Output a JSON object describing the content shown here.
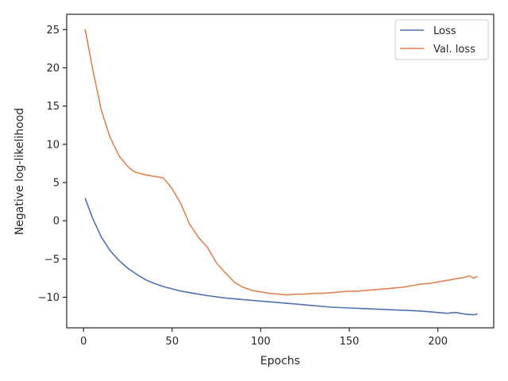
{
  "chart_data": {
    "type": "line",
    "title": "",
    "xlabel": "Epochs",
    "ylabel": "Negative log-likelihood",
    "xlim": [
      -9.5,
      231.5
    ],
    "ylim": [
      -14.0,
      27.0
    ],
    "xticks": [
      0,
      50,
      100,
      150,
      200
    ],
    "yticks": [
      -10,
      -5,
      0,
      5,
      10,
      15,
      20,
      25
    ],
    "grid": false,
    "legend_position": "top-right",
    "series": [
      {
        "name": "Loss",
        "color": "#4c72b0",
        "x": [
          1,
          5,
          10,
          15,
          20,
          25,
          30,
          35,
          40,
          45,
          50,
          55,
          60,
          70,
          80,
          90,
          100,
          110,
          120,
          130,
          140,
          150,
          160,
          170,
          180,
          190,
          200,
          205,
          210,
          215,
          220,
          222
        ],
        "y": [
          2.9,
          0.4,
          -2.1,
          -3.9,
          -5.2,
          -6.2,
          -7.0,
          -7.7,
          -8.2,
          -8.6,
          -8.9,
          -9.2,
          -9.4,
          -9.8,
          -10.1,
          -10.3,
          -10.5,
          -10.7,
          -10.9,
          -11.1,
          -11.3,
          -11.4,
          -11.5,
          -11.6,
          -11.7,
          -11.8,
          -12.0,
          -12.1,
          -12.0,
          -12.2,
          -12.3,
          -12.2
        ]
      },
      {
        "name": "Val. loss",
        "color": "#dd8452",
        "x": [
          1,
          5,
          10,
          15,
          20,
          25,
          28,
          30,
          35,
          40,
          45,
          48,
          50,
          55,
          60,
          65,
          70,
          75,
          80,
          85,
          90,
          95,
          100,
          105,
          110,
          115,
          120,
          125,
          130,
          135,
          140,
          145,
          150,
          155,
          160,
          165,
          170,
          175,
          180,
          185,
          190,
          195,
          200,
          205,
          210,
          215,
          218,
          220,
          222
        ],
        "y": [
          25.0,
          20.0,
          14.5,
          10.9,
          8.5,
          7.1,
          6.5,
          6.3,
          6.0,
          5.8,
          5.6,
          4.8,
          4.2,
          2.2,
          -0.5,
          -2.2,
          -3.5,
          -5.5,
          -6.8,
          -8.0,
          -8.7,
          -9.1,
          -9.3,
          -9.5,
          -9.6,
          -9.7,
          -9.6,
          -9.6,
          -9.5,
          -9.5,
          -9.4,
          -9.3,
          -9.2,
          -9.2,
          -9.1,
          -9.0,
          -8.9,
          -8.8,
          -8.7,
          -8.5,
          -8.3,
          -8.2,
          -8.0,
          -7.8,
          -7.6,
          -7.4,
          -7.2,
          -7.5,
          -7.3
        ]
      }
    ]
  }
}
